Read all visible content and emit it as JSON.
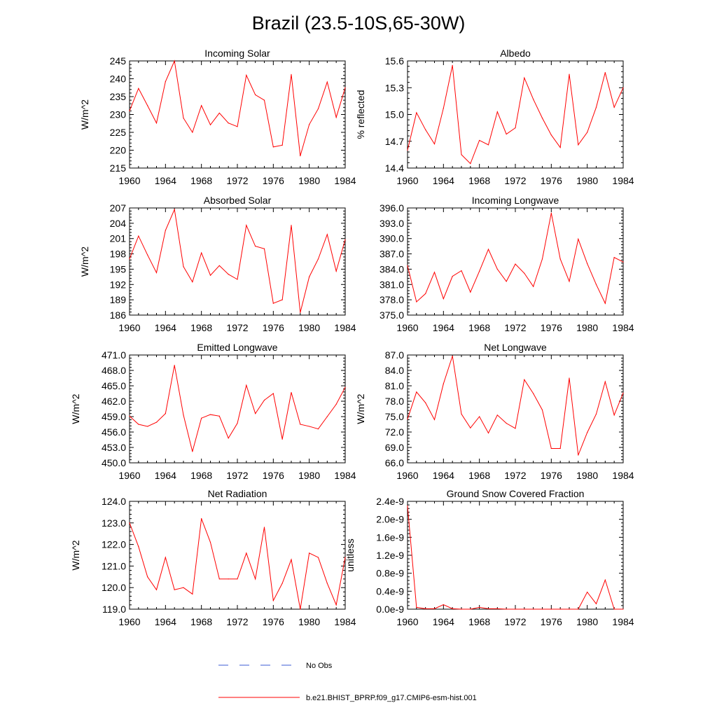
{
  "figure": {
    "title": "Brazil (23.5-10S,65-30W)"
  },
  "legend": {
    "entries": [
      {
        "label": "No Obs",
        "style": "dashed",
        "color": "#3b5bd6"
      },
      {
        "label": "b.e21.BHIST_BPRP.f09_g17.CMIP6-esm-hist.001",
        "style": "solid",
        "color": "#ff0000"
      }
    ]
  },
  "chart_data": [
    {
      "type": "line",
      "title": "Incoming Solar",
      "ylabel": "W/m^2",
      "xlabel": "",
      "xlim": [
        1960,
        1984
      ],
      "ylim": [
        215,
        245
      ],
      "xticks": [
        1960,
        1964,
        1968,
        1972,
        1976,
        1980,
        1984
      ],
      "xtick_labels": [
        "1960",
        "1964",
        "1968",
        "1972",
        "1976",
        "1980",
        "1984"
      ],
      "yticks": [
        215,
        220,
        225,
        230,
        235,
        240,
        245
      ],
      "ytick_labels": [
        "215",
        "220",
        "225",
        "230",
        "235",
        "240",
        "245"
      ],
      "series": [
        {
          "name": "b.e21.BHIST_BPRP.f09_g17.CMIP6-esm-hist.001",
          "color": "#ff0000",
          "x": [
            1960,
            1961,
            1962,
            1963,
            1964,
            1965,
            1966,
            1967,
            1968,
            1969,
            1970,
            1971,
            1972,
            1973,
            1974,
            1975,
            1976,
            1977,
            1978,
            1979,
            1980,
            1981,
            1982,
            1983,
            1984
          ],
          "values": [
            231,
            237.3,
            232.5,
            227.6,
            239.2,
            245,
            229,
            225,
            232.5,
            227.1,
            230.4,
            227.6,
            226.6,
            241,
            235.5,
            234,
            220.9,
            221.4,
            241.2,
            218.4,
            227.2,
            231.6,
            239.1,
            229.2,
            237.5
          ]
        }
      ]
    },
    {
      "type": "line",
      "title": "Albedo",
      "ylabel": "% reflected",
      "xlabel": "",
      "xlim": [
        1960,
        1984
      ],
      "ylim": [
        14.4,
        15.6
      ],
      "xticks": [
        1960,
        1964,
        1968,
        1972,
        1976,
        1980,
        1984
      ],
      "xtick_labels": [
        "1960",
        "1964",
        "1968",
        "1972",
        "1976",
        "1980",
        "1984"
      ],
      "yticks": [
        14.4,
        14.7,
        15.0,
        15.3,
        15.6
      ],
      "ytick_labels": [
        "14.4",
        "14.7",
        "15.0",
        "15.3",
        "15.6"
      ],
      "series": [
        {
          "name": "b.e21.BHIST_BPRP.f09_g17.CMIP6-esm-hist.001",
          "color": "#ff0000",
          "x": [
            1960,
            1961,
            1962,
            1963,
            1964,
            1965,
            1966,
            1967,
            1968,
            1969,
            1970,
            1971,
            1972,
            1973,
            1974,
            1975,
            1976,
            1977,
            1978,
            1979,
            1980,
            1981,
            1982,
            1983,
            1984
          ],
          "values": [
            14.6,
            15.02,
            14.83,
            14.67,
            15.07,
            15.55,
            14.55,
            14.45,
            14.71,
            14.66,
            15.03,
            14.78,
            14.85,
            15.41,
            15.17,
            14.96,
            14.77,
            14.63,
            15.45,
            14.66,
            14.8,
            15.08,
            15.47,
            15.08,
            15.3
          ]
        }
      ]
    },
    {
      "type": "line",
      "title": "Absorbed Solar",
      "ylabel": "W/m^2",
      "xlabel": "",
      "xlim": [
        1960,
        1984
      ],
      "ylim": [
        186,
        207
      ],
      "xticks": [
        1960,
        1964,
        1968,
        1972,
        1976,
        1980,
        1984
      ],
      "xtick_labels": [
        "1960",
        "1964",
        "1968",
        "1972",
        "1976",
        "1980",
        "1984"
      ],
      "yticks": [
        186,
        189,
        192,
        195,
        198,
        201,
        204,
        207
      ],
      "ytick_labels": [
        "186",
        "189",
        "192",
        "195",
        "198",
        "201",
        "204",
        "207"
      ],
      "series": [
        {
          "name": "b.e21.BHIST_BPRP.f09_g17.CMIP6-esm-hist.001",
          "color": "#ff0000",
          "x": [
            1960,
            1961,
            1962,
            1963,
            1964,
            1965,
            1966,
            1967,
            1968,
            1969,
            1970,
            1971,
            1972,
            1973,
            1974,
            1975,
            1976,
            1977,
            1978,
            1979,
            1980,
            1981,
            1982,
            1983,
            1984
          ],
          "values": [
            197,
            201.5,
            197.8,
            194.3,
            202.6,
            206.7,
            195.5,
            192.5,
            198.2,
            193.8,
            195.7,
            194,
            193,
            203.6,
            199.5,
            199,
            188.3,
            189,
            203.6,
            186.5,
            193.5,
            197,
            201.8,
            194.6,
            200.8
          ]
        }
      ]
    },
    {
      "type": "line",
      "title": "Incoming Longwave",
      "ylabel": "",
      "xlabel": "",
      "xlim": [
        1960,
        1984
      ],
      "ylim": [
        375,
        396
      ],
      "xticks": [
        1960,
        1964,
        1968,
        1972,
        1976,
        1980,
        1984
      ],
      "xtick_labels": [
        "1960",
        "1964",
        "1968",
        "1972",
        "1976",
        "1980",
        "1984"
      ],
      "yticks": [
        375,
        378,
        381,
        384,
        387,
        390,
        393,
        396
      ],
      "ytick_labels": [
        "375.0",
        "378.0",
        "381.0",
        "384.0",
        "387.0",
        "390.0",
        "393.0",
        "396.0"
      ],
      "series": [
        {
          "name": "b.e21.BHIST_BPRP.f09_g17.CMIP6-esm-hist.001",
          "color": "#ff0000",
          "x": [
            1960,
            1961,
            1962,
            1963,
            1964,
            1965,
            1966,
            1967,
            1968,
            1969,
            1970,
            1971,
            1972,
            1973,
            1974,
            1975,
            1976,
            1977,
            1978,
            1979,
            1980,
            1981,
            1982,
            1983,
            1984
          ],
          "values": [
            384.7,
            377.6,
            379.2,
            383.4,
            378.2,
            382.6,
            383.7,
            379.5,
            383.6,
            387.9,
            384,
            381.6,
            385,
            383.2,
            380.6,
            386,
            395,
            386,
            381.6,
            389.9,
            385.1,
            381,
            377.3,
            386.3,
            385.4
          ]
        }
      ]
    },
    {
      "type": "line",
      "title": "Emitted Longwave",
      "ylabel": "W/m^2",
      "xlabel": "",
      "xlim": [
        1960,
        1984
      ],
      "ylim": [
        450,
        471
      ],
      "xticks": [
        1960,
        1964,
        1968,
        1972,
        1976,
        1980,
        1984
      ],
      "xtick_labels": [
        "1960",
        "1964",
        "1968",
        "1972",
        "1976",
        "1980",
        "1984"
      ],
      "yticks": [
        450,
        453,
        456,
        459,
        462,
        465,
        468,
        471
      ],
      "ytick_labels": [
        "450.0",
        "453.0",
        "456.0",
        "459.0",
        "462.0",
        "465.0",
        "468.0",
        "471.0"
      ],
      "series": [
        {
          "name": "b.e21.BHIST_BPRP.f09_g17.CMIP6-esm-hist.001",
          "color": "#ff0000",
          "x": [
            1960,
            1961,
            1962,
            1963,
            1964,
            1965,
            1966,
            1967,
            1968,
            1969,
            1970,
            1971,
            1972,
            1973,
            1974,
            1975,
            1976,
            1977,
            1978,
            1979,
            1980,
            1981,
            1982,
            1983,
            1984
          ],
          "values": [
            459.1,
            457.5,
            457.1,
            457.9,
            459.6,
            469,
            459.3,
            452.2,
            458.7,
            459.4,
            459.1,
            454.8,
            457.7,
            465.1,
            459.6,
            462.2,
            463.5,
            454.6,
            463.7,
            457.5,
            457.1,
            456.6,
            459,
            461.4,
            464.7
          ]
        }
      ]
    },
    {
      "type": "line",
      "title": "Net Longwave",
      "ylabel": "W/m^2",
      "xlabel": "",
      "xlim": [
        1960,
        1984
      ],
      "ylim": [
        66,
        87
      ],
      "xticks": [
        1960,
        1964,
        1968,
        1972,
        1976,
        1980,
        1984
      ],
      "xtick_labels": [
        "1960",
        "1964",
        "1968",
        "1972",
        "1976",
        "1980",
        "1984"
      ],
      "yticks": [
        66,
        69,
        72,
        75,
        78,
        81,
        84,
        87
      ],
      "ytick_labels": [
        "66.0",
        "69.0",
        "72.0",
        "75.0",
        "78.0",
        "81.0",
        "84.0",
        "87.0"
      ],
      "series": [
        {
          "name": "b.e21.BHIST_BPRP.f09_g17.CMIP6-esm-hist.001",
          "color": "#ff0000",
          "x": [
            1960,
            1961,
            1962,
            1963,
            1964,
            1965,
            1966,
            1967,
            1968,
            1969,
            1970,
            1971,
            1972,
            1973,
            1974,
            1975,
            1976,
            1977,
            1978,
            1979,
            1980,
            1981,
            1982,
            1983,
            1984
          ],
          "values": [
            74.5,
            79.8,
            77.7,
            74.4,
            81.4,
            86.8,
            75.5,
            72.8,
            75,
            71.8,
            75.3,
            73.7,
            72.7,
            82.2,
            79.5,
            76.3,
            68.8,
            68.8,
            82.5,
            67.5,
            71.9,
            75.5,
            81.8,
            75.3,
            79.6
          ]
        }
      ]
    },
    {
      "type": "line",
      "title": "Net Radiation",
      "ylabel": "W/m^2",
      "xlabel": "",
      "xlim": [
        1960,
        1984
      ],
      "ylim": [
        119,
        124
      ],
      "xticks": [
        1960,
        1964,
        1968,
        1972,
        1976,
        1980,
        1984
      ],
      "xtick_labels": [
        "1960",
        "1964",
        "1968",
        "1972",
        "1976",
        "1980",
        "1984"
      ],
      "yticks": [
        119,
        120,
        121,
        122,
        123,
        124
      ],
      "ytick_labels": [
        "119.0",
        "120.0",
        "121.0",
        "122.0",
        "123.0",
        "124.0"
      ],
      "series": [
        {
          "name": "b.e21.BHIST_BPRP.f09_g17.CMIP6-esm-hist.001",
          "color": "#ff0000",
          "x": [
            1960,
            1961,
            1962,
            1963,
            1964,
            1965,
            1966,
            1967,
            1968,
            1969,
            1970,
            1971,
            1972,
            1973,
            1974,
            1975,
            1976,
            1977,
            1978,
            1979,
            1980,
            1981,
            1982,
            1983,
            1984
          ],
          "values": [
            123,
            121.9,
            120.5,
            119.9,
            121.4,
            119.9,
            120,
            119.7,
            123.2,
            122.1,
            120.4,
            120.4,
            120.4,
            121.6,
            120.4,
            122.8,
            119.4,
            120.2,
            121.3,
            119,
            121.6,
            121.4,
            120.2,
            119.2,
            121.4
          ]
        }
      ]
    },
    {
      "type": "line",
      "title": "Ground Snow Covered Fraction",
      "ylabel": "unitless",
      "xlabel": "",
      "xlim": [
        1960,
        1984
      ],
      "ylim": [
        0,
        2.4e-09
      ],
      "xticks": [
        1960,
        1964,
        1968,
        1972,
        1976,
        1980,
        1984
      ],
      "xtick_labels": [
        "1960",
        "1964",
        "1968",
        "1972",
        "1976",
        "1980",
        "1984"
      ],
      "yticks": [
        0,
        4e-10,
        8e-10,
        1.2e-09,
        1.6e-09,
        2e-09,
        2.4e-09
      ],
      "ytick_labels": [
        "0.0e-9",
        "0.4e-9",
        "0.8e-9",
        "1.2e-9",
        "1.6e-9",
        "2.0e-9",
        "2.4e-9"
      ],
      "series": [
        {
          "name": "b.e21.BHIST_BPRP.f09_g17.CMIP6-esm-hist.001",
          "color": "#ff0000",
          "x": [
            1960,
            1961,
            1962,
            1963,
            1964,
            1965,
            1966,
            1967,
            1968,
            1969,
            1970,
            1971,
            1972,
            1973,
            1974,
            1975,
            1976,
            1977,
            1978,
            1979,
            1980,
            1981,
            1982,
            1983,
            1984
          ],
          "values": [
            2.3e-09,
            4e-11,
            1e-11,
            1e-11,
            1e-10,
            1e-11,
            0,
            0,
            4e-11,
            1e-11,
            1e-11,
            0,
            0,
            0,
            0,
            0,
            0,
            0,
            0,
            0,
            3.8e-10,
            1.2e-10,
            6.5e-10,
            0,
            0
          ]
        }
      ]
    }
  ]
}
